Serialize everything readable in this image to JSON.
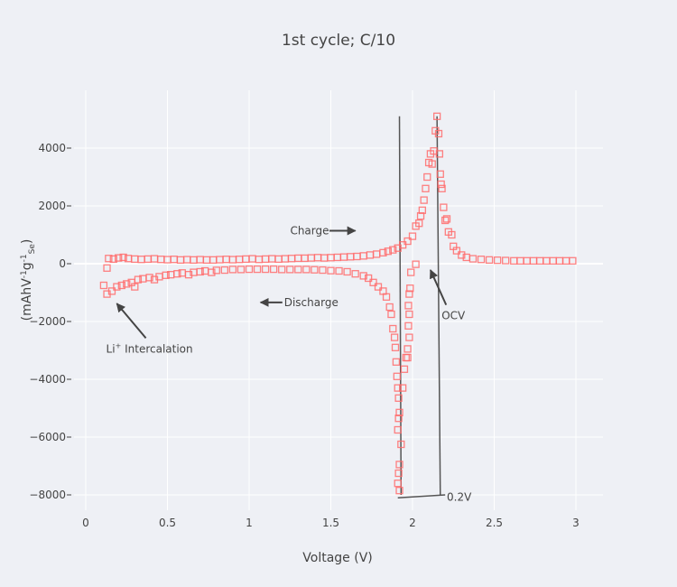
{
  "chart_data": {
    "type": "scatter",
    "title": "1st cycle; C/10",
    "xlabel": "Voltage (V)",
    "ylabel": {
      "main": "(mAhV",
      "sup1": "-1",
      "g": "g",
      "sup2": "-1",
      "sub": "Se",
      "close": ")"
    },
    "xlim": [
      0,
      3
    ],
    "ylim": [
      -8000,
      4800
    ],
    "xticks": [
      0,
      0.5,
      1,
      1.5,
      2,
      2.5,
      3
    ],
    "xtick_labels": [
      "0",
      "0.5",
      "1",
      "1.5",
      "2",
      "2.5",
      "3"
    ],
    "yticks": [
      4000,
      2000,
      0,
      -2000,
      -4000,
      -6000,
      -8000
    ],
    "ytick_labels": [
      "4000",
      "2000",
      "0",
      "−2000",
      "−4000",
      "−6000",
      "−8000"
    ],
    "grid": true,
    "marker": {
      "symbol": "square-open",
      "color": "#ff6b6b"
    },
    "series": [
      {
        "name": "charge",
        "x": [
          0.13,
          0.14,
          0.17,
          0.2,
          0.23,
          0.26,
          0.3,
          0.34,
          0.38,
          0.42,
          0.46,
          0.5,
          0.54,
          0.58,
          0.62,
          0.66,
          0.7,
          0.74,
          0.78,
          0.82,
          0.86,
          0.9,
          0.94,
          0.98,
          1.02,
          1.06,
          1.1,
          1.14,
          1.18,
          1.22,
          1.26,
          1.3,
          1.34,
          1.38,
          1.42,
          1.46,
          1.5,
          1.54,
          1.58,
          1.62,
          1.66,
          1.7,
          1.74,
          1.78,
          1.82,
          1.85,
          1.88,
          1.91,
          1.94,
          1.97,
          2.0,
          2.02,
          2.04,
          2.05,
          2.06,
          2.07,
          2.08,
          2.09,
          2.1,
          2.11,
          2.12,
          2.13,
          2.14,
          2.15,
          2.16,
          2.165,
          2.17,
          2.175,
          2.18,
          2.19,
          2.2,
          2.21,
          2.22,
          2.24,
          2.25,
          2.27,
          2.3,
          2.33,
          2.37,
          2.42,
          2.47,
          2.52,
          2.57,
          2.62,
          2.66,
          2.7,
          2.74,
          2.78,
          2.82,
          2.86,
          2.9,
          2.94,
          2.98
        ],
        "y": [
          -150,
          180,
          160,
          200,
          220,
          180,
          160,
          150,
          160,
          170,
          150,
          140,
          150,
          130,
          140,
          130,
          140,
          130,
          130,
          140,
          150,
          140,
          150,
          160,
          170,
          150,
          160,
          170,
          160,
          170,
          180,
          190,
          190,
          200,
          210,
          200,
          210,
          220,
          230,
          240,
          250,
          270,
          300,
          330,
          380,
          430,
          480,
          540,
          650,
          780,
          950,
          1300,
          1400,
          1650,
          1850,
          2200,
          2600,
          3000,
          3500,
          3800,
          3450,
          3900,
          4600,
          5100,
          4500,
          3800,
          3100,
          2750,
          2600,
          1950,
          1500,
          1550,
          1100,
          1000,
          600,
          450,
          300,
          220,
          170,
          150,
          130,
          120,
          110,
          100,
          100,
          100,
          100,
          100,
          100,
          100,
          100,
          100,
          100
        ]
      },
      {
        "name": "discharge",
        "x": [
          0.11,
          0.13,
          0.16,
          0.19,
          0.22,
          0.25,
          0.28,
          0.3,
          0.32,
          0.35,
          0.39,
          0.42,
          0.45,
          0.49,
          0.52,
          0.56,
          0.59,
          0.63,
          0.66,
          0.7,
          0.73,
          0.77,
          0.8,
          0.85,
          0.9,
          0.95,
          1.0,
          1.05,
          1.1,
          1.15,
          1.2,
          1.25,
          1.3,
          1.35,
          1.4,
          1.45,
          1.5,
          1.55,
          1.6,
          1.65,
          1.7,
          1.73,
          1.76,
          1.79,
          1.82,
          1.84,
          1.86,
          1.87,
          1.88,
          1.89,
          1.895,
          1.9,
          1.905,
          1.91,
          1.915,
          1.92,
          1.915,
          1.91,
          1.92,
          1.915,
          1.91,
          1.92,
          1.93,
          1.94,
          1.95,
          1.96,
          1.97,
          1.97,
          1.98,
          1.975,
          1.98,
          1.975,
          1.98,
          1.985,
          1.99,
          2.02
        ],
        "y": [
          -750,
          -1050,
          -950,
          -800,
          -750,
          -700,
          -650,
          -800,
          -550,
          -520,
          -480,
          -550,
          -450,
          -400,
          -380,
          -350,
          -320,
          -380,
          -300,
          -280,
          -250,
          -300,
          -230,
          -220,
          -200,
          -200,
          -190,
          -190,
          -190,
          -190,
          -200,
          -200,
          -200,
          -200,
          -210,
          -220,
          -240,
          -250,
          -280,
          -350,
          -420,
          -500,
          -650,
          -800,
          -950,
          -1150,
          -1500,
          -1750,
          -2250,
          -2550,
          -2900,
          -3400,
          -3900,
          -4300,
          -4650,
          -5150,
          -5350,
          -5750,
          -6950,
          -7250,
          -7600,
          -7850,
          -6250,
          -4300,
          -3650,
          -3250,
          -3250,
          -2950,
          -2550,
          -2150,
          -1750,
          -1450,
          -1050,
          -850,
          -300,
          -20
        ]
      }
    ],
    "lines": [
      {
        "x": [
          1.92,
          1.93
        ],
        "y": [
          5100,
          -8000
        ]
      },
      {
        "x": [
          2.15,
          2.17
        ],
        "y": [
          5100,
          -8000
        ]
      },
      {
        "x": [
          1.91,
          2.2
        ],
        "y": [
          -8100,
          -8000
        ]
      }
    ],
    "annotations": [
      {
        "text": "Charge",
        "x": 1.37,
        "y": 1140,
        "ax": 1.65,
        "ay": 1140
      },
      {
        "text": "Discharge",
        "x": 1.38,
        "y": -1340,
        "ax": 1.07,
        "ay": -1340
      },
      {
        "text": "Li+ Intercalation",
        "sup": "+",
        "x": 0.39,
        "y": -2950,
        "ax": 0.19,
        "ay": -1380
      },
      {
        "text": "OCV",
        "x": 2.25,
        "y": -1800,
        "ax": 2.11,
        "ay": -220
      },
      {
        "text": "0.2V",
        "x": 2.21,
        "y": -8080
      }
    ]
  }
}
